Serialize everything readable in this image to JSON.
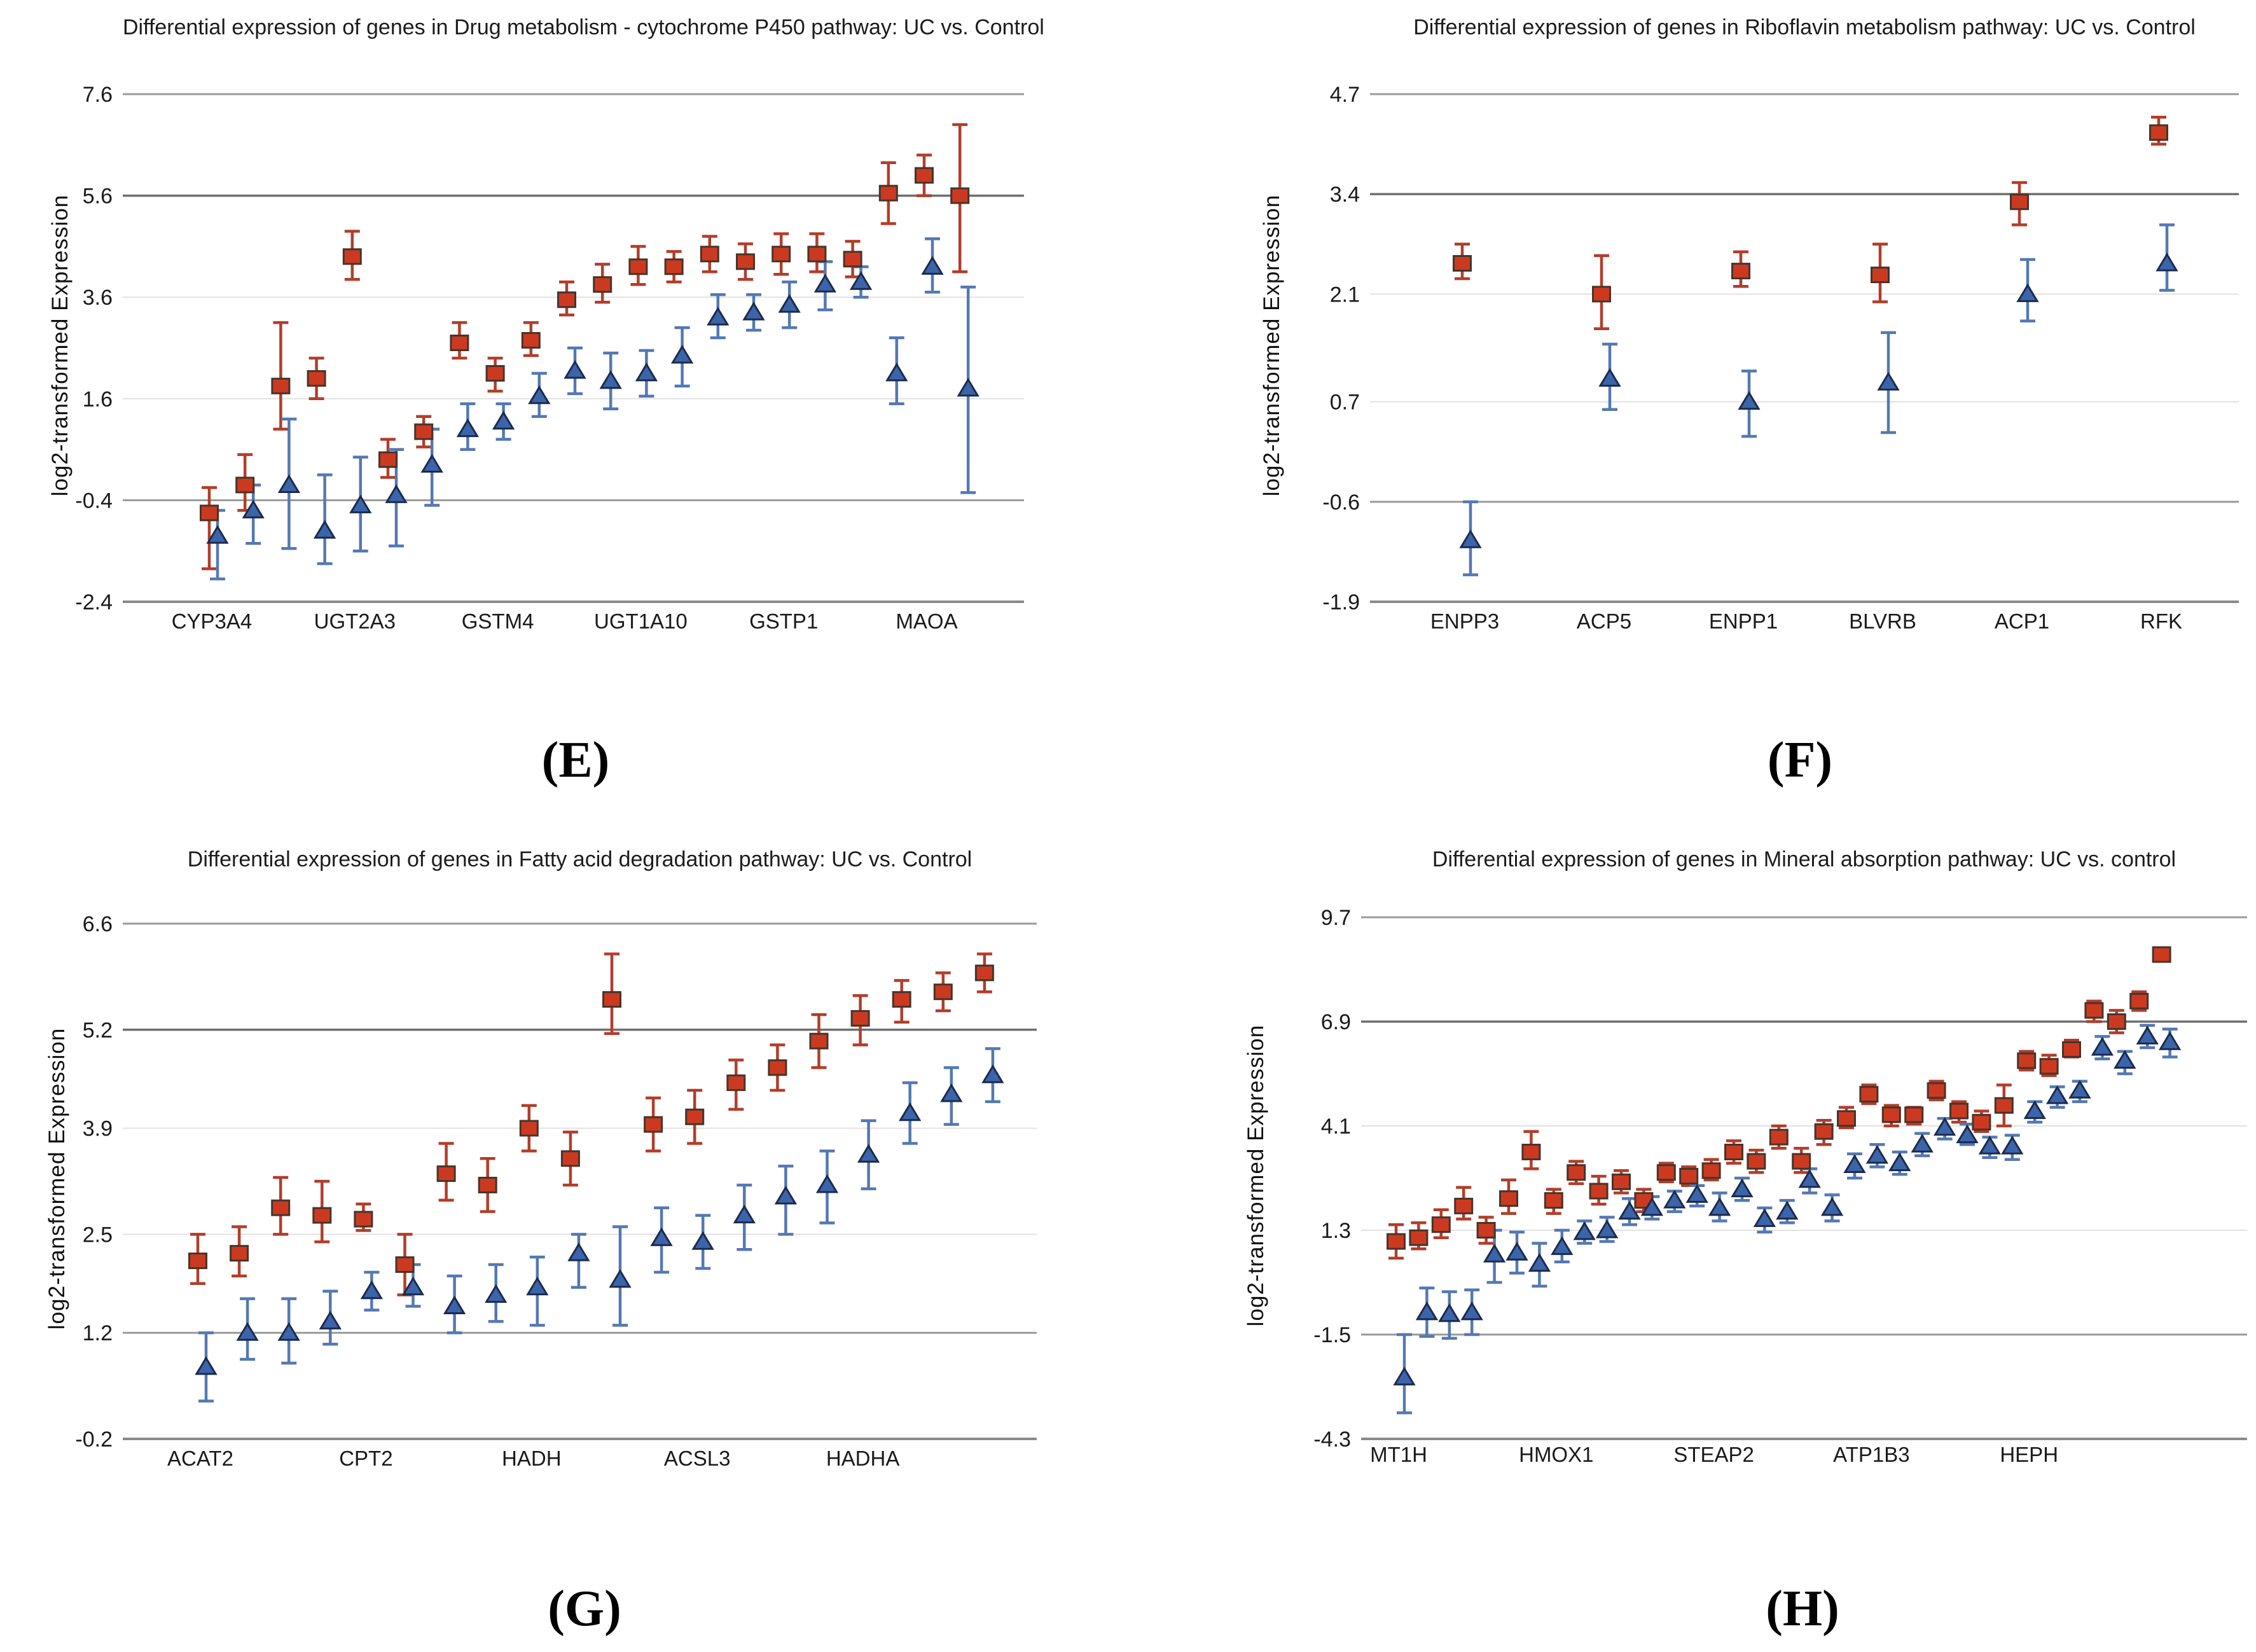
{
  "colors": {
    "uc_fill": "#cb3a20",
    "uc_edge": "#46352b",
    "uc_errorbar": "#b23d2a",
    "control_fill": "#3c64aa",
    "control_edge": "#1b2b4d",
    "control_errorbar": "#5478b4",
    "grid_major": "#6e6e6e",
    "grid_medium": "#9a9a9a",
    "grid_light": "#e2e2e2",
    "axis": "#8a8a8a",
    "text": "#1a1a1a"
  },
  "chart_data": [
    {
      "type": "scatter",
      "panel_letter": "(E)",
      "title": "Differential expression of genes in Drug metabolism - cytochrome P450 pathway: UC vs. Control",
      "ylabel": "log2-transformed Expression",
      "ylim": [
        -2.4,
        7.6
      ],
      "yticks": [
        7.6,
        5.6,
        3.6,
        1.6,
        -0.4,
        -2.4
      ],
      "grid": "horizontal",
      "legend": "none",
      "x_tick_labels": [
        "CYP3A4",
        "UGT2A3",
        "GSTM4",
        "UGT1A10",
        "GSTP1",
        "MAOA"
      ],
      "x_tick_positions": [
        0,
        4,
        8,
        12,
        16,
        20
      ],
      "n_points": 22,
      "series": [
        {
          "name": "UC",
          "marker": "square",
          "values": [
            -0.65,
            -0.1,
            1.85,
            2.0,
            4.4,
            0.4,
            0.95,
            2.7,
            2.1,
            2.75,
            3.55,
            3.85,
            4.2,
            4.2,
            4.45,
            4.3,
            4.45,
            4.45,
            4.35,
            5.65,
            6.0,
            5.6
          ],
          "err_low": [
            -1.75,
            -0.6,
            1.0,
            1.6,
            3.95,
            0.05,
            0.65,
            2.4,
            1.75,
            2.45,
            3.25,
            3.5,
            3.85,
            3.9,
            4.1,
            3.95,
            4.05,
            4.1,
            4.0,
            5.05,
            5.6,
            4.1
          ],
          "err_high": [
            -0.15,
            0.5,
            3.1,
            2.4,
            4.9,
            0.8,
            1.25,
            3.1,
            2.4,
            3.1,
            3.9,
            4.25,
            4.6,
            4.5,
            4.8,
            4.65,
            4.85,
            4.85,
            4.7,
            6.25,
            6.4,
            7.0
          ]
        },
        {
          "name": "Control",
          "marker": "triangle",
          "values": [
            -1.1,
            -0.6,
            -0.1,
            -1.0,
            -0.5,
            -0.3,
            0.3,
            1.0,
            1.15,
            1.65,
            2.15,
            1.95,
            2.1,
            2.45,
            3.2,
            3.3,
            3.45,
            3.85,
            3.9,
            2.1,
            4.2,
            1.8
          ],
          "err_low": [
            -1.95,
            -1.25,
            -1.35,
            -1.65,
            -1.4,
            -1.3,
            -0.5,
            0.6,
            0.8,
            1.25,
            1.7,
            1.4,
            1.65,
            1.85,
            2.8,
            2.95,
            3.0,
            3.35,
            3.6,
            1.5,
            3.7,
            -0.25
          ],
          "err_high": [
            -0.6,
            -0.1,
            1.2,
            0.1,
            0.45,
            0.6,
            1.0,
            1.5,
            1.5,
            2.1,
            2.6,
            2.5,
            2.55,
            3.0,
            3.65,
            3.65,
            3.9,
            4.3,
            4.2,
            2.8,
            4.75,
            3.8
          ]
        }
      ]
    },
    {
      "type": "scatter",
      "panel_letter": "(F)",
      "title": "Differential expression of genes in Riboflavin metabolism pathway: UC vs. Control",
      "ylabel": "log2-transformed Expression",
      "ylim": [
        -1.9,
        4.7
      ],
      "yticks": [
        4.7,
        3.4,
        2.1,
        0.7,
        -0.6,
        -1.9
      ],
      "grid": "horizontal",
      "legend": "none",
      "x_tick_labels": [
        "ENPP3",
        "ACP5",
        "ENPP1",
        "BLVRB",
        "ACP1",
        "RFK"
      ],
      "x_tick_positions": [
        0,
        1,
        2,
        3,
        4,
        5
      ],
      "n_points": 6,
      "series": [
        {
          "name": "UC",
          "marker": "square",
          "values": [
            2.5,
            2.1,
            2.4,
            2.35,
            3.3,
            4.2
          ],
          "err_low": [
            2.3,
            1.65,
            2.2,
            2.0,
            3.0,
            4.05
          ],
          "err_high": [
            2.75,
            2.6,
            2.65,
            2.75,
            3.55,
            4.4
          ]
        },
        {
          "name": "Control",
          "marker": "triangle",
          "values": [
            -1.1,
            1.0,
            0.7,
            0.95,
            2.1,
            2.5
          ],
          "err_low": [
            -1.55,
            0.6,
            0.25,
            0.3,
            1.75,
            2.15
          ],
          "err_high": [
            -0.6,
            1.45,
            1.1,
            1.6,
            2.55,
            3.0
          ]
        }
      ]
    },
    {
      "type": "scatter",
      "panel_letter": "(G)",
      "title": "Differential expression of genes in Fatty acid degradation pathway: UC vs. Control",
      "ylabel": "log2-transformed Expression",
      "ylim": [
        -0.2,
        6.6
      ],
      "yticks": [
        6.6,
        5.2,
        3.9,
        2.5,
        1.2,
        -0.2
      ],
      "grid": "horizontal",
      "legend": "none",
      "x_tick_labels": [
        "ACAT2",
        "CPT2",
        "HADH",
        "ACSL3",
        "HADHA"
      ],
      "x_tick_positions": [
        0,
        4,
        8,
        12,
        16
      ],
      "n_points": 20,
      "series": [
        {
          "name": "UC",
          "marker": "square",
          "values": [
            2.15,
            2.25,
            2.85,
            2.75,
            2.7,
            2.1,
            3.3,
            3.15,
            3.9,
            3.5,
            5.6,
            3.95,
            4.05,
            4.5,
            4.7,
            5.05,
            5.35,
            5.6,
            5.7,
            5.95
          ],
          "err_low": [
            1.85,
            1.95,
            2.5,
            2.4,
            2.55,
            1.7,
            2.95,
            2.8,
            3.6,
            3.15,
            5.15,
            3.6,
            3.7,
            4.15,
            4.4,
            4.7,
            5.0,
            5.3,
            5.45,
            5.7
          ],
          "err_high": [
            2.5,
            2.6,
            3.25,
            3.2,
            2.9,
            2.5,
            3.7,
            3.5,
            4.2,
            3.85,
            6.2,
            4.3,
            4.4,
            4.8,
            5.0,
            5.4,
            5.65,
            5.85,
            5.95,
            6.2
          ]
        },
        {
          "name": "Control",
          "marker": "triangle",
          "values": [
            0.75,
            1.2,
            1.2,
            1.35,
            1.75,
            1.8,
            1.55,
            1.7,
            1.8,
            2.25,
            1.9,
            2.45,
            2.4,
            2.75,
            3.0,
            3.15,
            3.55,
            4.1,
            4.35,
            4.6
          ],
          "err_low": [
            0.3,
            0.85,
            0.8,
            1.05,
            1.5,
            1.55,
            1.2,
            1.35,
            1.3,
            1.8,
            1.3,
            2.0,
            2.05,
            2.3,
            2.5,
            2.65,
            3.1,
            3.7,
            3.95,
            4.25
          ],
          "err_high": [
            1.2,
            1.65,
            1.65,
            1.75,
            2.0,
            2.1,
            1.95,
            2.1,
            2.2,
            2.5,
            2.6,
            2.85,
            2.75,
            3.15,
            3.4,
            3.6,
            4.0,
            4.5,
            4.7,
            4.95
          ]
        }
      ]
    },
    {
      "type": "scatter",
      "panel_letter": "(H)",
      "title": "Differential expression of genes in Mineral absorption pathway: UC vs. control",
      "ylabel": "log2-transformed Expression",
      "ylim": [
        -4.3,
        9.7
      ],
      "yticks": [
        9.7,
        6.9,
        4.1,
        1.3,
        -1.5,
        -4.3
      ],
      "grid": "horizontal",
      "legend": "none",
      "x_tick_labels": [
        "MT1H",
        "HMOX1",
        "STEAP2",
        "ATP1B3",
        "HEPH"
      ],
      "x_tick_positions": [
        0,
        7,
        14,
        21,
        28
      ],
      "n_points": 35,
      "series": [
        {
          "name": "UC",
          "marker": "square",
          "values": [
            1.0,
            1.1,
            1.45,
            1.95,
            1.3,
            2.15,
            3.4,
            2.1,
            2.85,
            2.35,
            2.6,
            2.1,
            2.85,
            2.75,
            2.9,
            3.4,
            3.15,
            3.8,
            3.15,
            3.95,
            4.3,
            4.95,
            4.4,
            4.4,
            5.05,
            4.5,
            4.2,
            4.65,
            5.85,
            5.7,
            6.15,
            7.2,
            6.9,
            7.45,
            8.7
          ],
          "err_low": [
            0.55,
            0.8,
            1.1,
            1.6,
            0.95,
            1.75,
            2.95,
            1.75,
            2.55,
            2.0,
            2.3,
            1.8,
            2.6,
            2.5,
            2.65,
            3.1,
            2.85,
            3.5,
            2.85,
            3.6,
            4.05,
            4.7,
            4.1,
            4.15,
            4.8,
            4.2,
            3.95,
            4.1,
            5.6,
            5.45,
            5.95,
            6.9,
            6.6,
            7.2,
            8.55
          ],
          "err_high": [
            1.45,
            1.5,
            1.85,
            2.45,
            1.65,
            2.65,
            3.95,
            2.4,
            3.15,
            2.75,
            2.9,
            2.4,
            3.1,
            3.0,
            3.2,
            3.7,
            3.45,
            4.1,
            3.5,
            4.25,
            4.6,
            5.2,
            4.65,
            4.6,
            5.3,
            4.75,
            4.5,
            5.2,
            6.1,
            6.0,
            6.4,
            7.45,
            7.2,
            7.7,
            8.85
          ]
        },
        {
          "name": "Control",
          "marker": "triangle",
          "values": [
            -2.65,
            -0.9,
            -0.95,
            -0.9,
            0.65,
            0.7,
            0.4,
            0.85,
            1.25,
            1.3,
            1.8,
            1.9,
            2.1,
            2.25,
            1.9,
            2.4,
            1.6,
            1.8,
            2.65,
            1.9,
            3.05,
            3.3,
            3.1,
            3.6,
            4.05,
            3.85,
            3.55,
            3.55,
            4.5,
            4.9,
            5.05,
            6.2,
            5.85,
            6.5,
            6.35
          ],
          "err_low": [
            -3.6,
            -1.55,
            -1.6,
            -1.5,
            -0.1,
            0.15,
            -0.2,
            0.45,
            0.95,
            1.0,
            1.45,
            1.6,
            1.8,
            1.95,
            1.55,
            2.1,
            1.25,
            1.5,
            2.3,
            1.55,
            2.7,
            3.0,
            2.8,
            3.3,
            3.75,
            3.6,
            3.25,
            3.2,
            4.2,
            4.6,
            4.75,
            5.9,
            5.5,
            6.2,
            5.95
          ],
          "err_high": [
            -1.5,
            -0.25,
            -0.35,
            -0.3,
            1.3,
            1.25,
            0.95,
            1.3,
            1.55,
            1.65,
            2.15,
            2.2,
            2.35,
            2.5,
            2.3,
            2.7,
            1.9,
            2.1,
            2.95,
            2.25,
            3.35,
            3.6,
            3.4,
            3.9,
            4.3,
            4.15,
            3.8,
            3.85,
            4.75,
            5.15,
            5.3,
            6.5,
            6.1,
            6.8,
            6.7
          ]
        }
      ]
    }
  ]
}
